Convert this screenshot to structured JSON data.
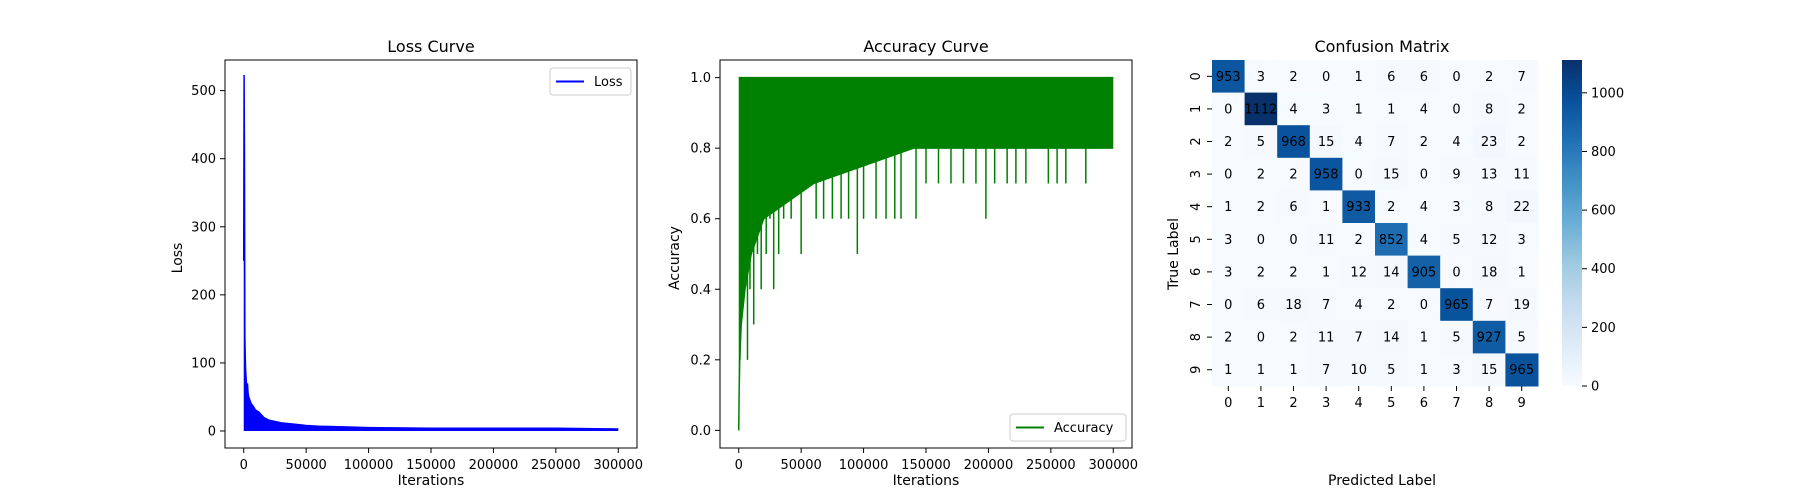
{
  "chart_data": [
    {
      "type": "line",
      "title": "Loss Curve",
      "xlabel": "Iterations",
      "ylabel": "Loss",
      "xlim": [
        -15000,
        315000
      ],
      "ylim": [
        -25,
        545
      ],
      "xticks": [
        0,
        50000,
        100000,
        150000,
        200000,
        250000,
        300000
      ],
      "yticks": [
        0,
        100,
        200,
        300,
        400,
        500
      ],
      "legend": "top-right",
      "series": [
        {
          "name": "Loss",
          "color": "#0000ff",
          "x": [
            0,
            300,
            600,
            900,
            1200,
            1500,
            2000,
            2500,
            3000,
            3500,
            4000,
            5000,
            6000,
            7000,
            8000,
            9000,
            10000,
            12000,
            14000,
            16000,
            18000,
            20000,
            25000,
            30000,
            40000,
            50000,
            60000,
            80000,
            100000,
            150000,
            200000,
            250000,
            300000
          ],
          "values": [
            250,
            523,
            400,
            140,
            110,
            90,
            75,
            60,
            70,
            55,
            50,
            45,
            40,
            38,
            35,
            32,
            30,
            28,
            24,
            20,
            18,
            16,
            14,
            12,
            10,
            8,
            7,
            6,
            5,
            4,
            4,
            4,
            3
          ],
          "band_min": 0
        }
      ]
    },
    {
      "type": "line",
      "title": "Accuracy Curve",
      "xlabel": "Iterations",
      "ylabel": "Accuracy",
      "xlim": [
        -15000,
        315000
      ],
      "ylim": [
        -0.05,
        1.05
      ],
      "xticks": [
        0,
        50000,
        100000,
        150000,
        200000,
        250000,
        300000
      ],
      "yticks": [
        0.0,
        0.2,
        0.4,
        0.6,
        0.8,
        1.0
      ],
      "legend": "bottom-right",
      "series": [
        {
          "name": "Accuracy",
          "color": "#008000",
          "upper": 1.0,
          "band_floor": [
            [
              0,
              0.0
            ],
            [
              300,
              0.1
            ],
            [
              800,
              0.2
            ],
            [
              2000,
              0.3
            ],
            [
              5000,
              0.4
            ],
            [
              10000,
              0.5
            ],
            [
              20000,
              0.6
            ],
            [
              60000,
              0.7
            ],
            [
              140000,
              0.8
            ],
            [
              300000,
              0.8
            ]
          ],
          "dips": [
            [
              1000,
              0.2
            ],
            [
              3000,
              0.5
            ],
            [
              7000,
              0.2
            ],
            [
              9000,
              0.4
            ],
            [
              12000,
              0.3
            ],
            [
              15000,
              0.5
            ],
            [
              18000,
              0.4
            ],
            [
              22000,
              0.5
            ],
            [
              25000,
              0.6
            ],
            [
              28000,
              0.4
            ],
            [
              32000,
              0.5
            ],
            [
              36000,
              0.6
            ],
            [
              42000,
              0.6
            ],
            [
              50000,
              0.5
            ],
            [
              55000,
              0.7
            ],
            [
              62000,
              0.6
            ],
            [
              68000,
              0.6
            ],
            [
              75000,
              0.6
            ],
            [
              82000,
              0.6
            ],
            [
              88000,
              0.6
            ],
            [
              95000,
              0.5
            ],
            [
              100000,
              0.6
            ],
            [
              110000,
              0.6
            ],
            [
              118000,
              0.6
            ],
            [
              125000,
              0.6
            ],
            [
              130000,
              0.6
            ],
            [
              138000,
              0.8
            ],
            [
              142000,
              0.6
            ],
            [
              150000,
              0.7
            ],
            [
              160000,
              0.7
            ],
            [
              170000,
              0.7
            ],
            [
              180000,
              0.7
            ],
            [
              190000,
              0.7
            ],
            [
              198000,
              0.6
            ],
            [
              205000,
              0.7
            ],
            [
              215000,
              0.7
            ],
            [
              222000,
              0.7
            ],
            [
              230000,
              0.7
            ],
            [
              240000,
              0.8
            ],
            [
              248000,
              0.7
            ],
            [
              255000,
              0.7
            ],
            [
              262000,
              0.7
            ],
            [
              270000,
              0.8
            ],
            [
              278000,
              0.7
            ]
          ]
        }
      ]
    },
    {
      "type": "heatmap",
      "title": "Confusion Matrix",
      "xlabel": "Predicted Label",
      "ylabel": "True Label",
      "x_labels": [
        "0",
        "1",
        "2",
        "3",
        "4",
        "5",
        "6",
        "7",
        "8",
        "9"
      ],
      "y_labels": [
        "0",
        "1",
        "2",
        "3",
        "4",
        "5",
        "6",
        "7",
        "8",
        "9"
      ],
      "values": [
        [
          953,
          3,
          2,
          0,
          1,
          6,
          6,
          0,
          2,
          7
        ],
        [
          0,
          1112,
          4,
          3,
          1,
          1,
          4,
          0,
          8,
          2
        ],
        [
          2,
          5,
          968,
          15,
          4,
          7,
          2,
          4,
          23,
          2
        ],
        [
          0,
          2,
          2,
          958,
          0,
          15,
          0,
          9,
          13,
          11
        ],
        [
          1,
          2,
          6,
          1,
          933,
          2,
          4,
          3,
          8,
          22
        ],
        [
          3,
          0,
          0,
          11,
          2,
          852,
          4,
          5,
          12,
          3
        ],
        [
          3,
          2,
          2,
          1,
          12,
          14,
          905,
          0,
          18,
          1
        ],
        [
          0,
          6,
          18,
          7,
          4,
          2,
          0,
          965,
          7,
          19
        ],
        [
          2,
          0,
          2,
          11,
          7,
          14,
          1,
          5,
          927,
          5
        ],
        [
          1,
          1,
          1,
          7,
          10,
          5,
          1,
          3,
          15,
          965
        ]
      ],
      "colormap": "Blues",
      "vmin": 0,
      "vmax": 1112,
      "colorbar_ticks": [
        0,
        200,
        400,
        600,
        800,
        1000
      ]
    }
  ]
}
